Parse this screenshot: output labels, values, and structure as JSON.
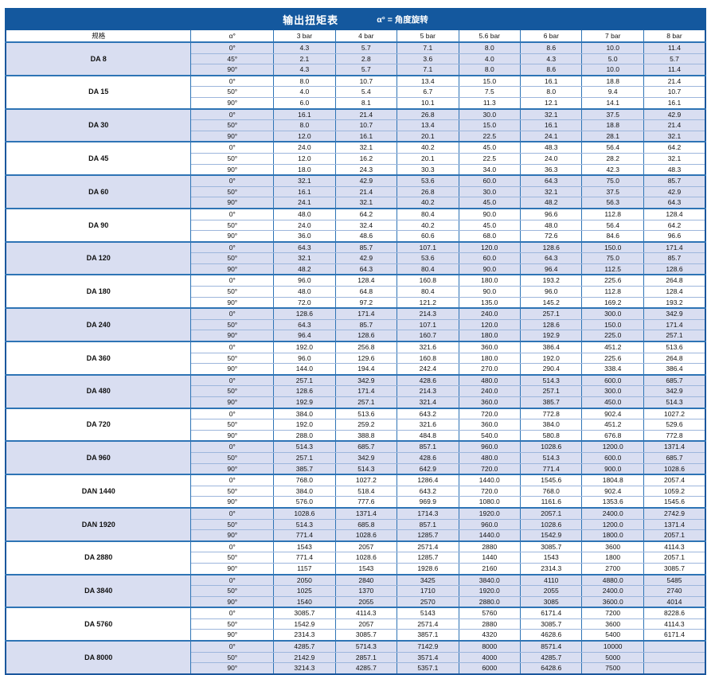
{
  "title": {
    "main": "输出扭矩表",
    "note": "α° = 角度旋转"
  },
  "columns": [
    "规格",
    "α°",
    "3 bar",
    "4 bar",
    "5 bar",
    "5.6 bar",
    "6 bar",
    "7 bar",
    "8 bar"
  ],
  "colors": {
    "title_bg": "#14589e",
    "title_text": "#ffffff",
    "border_strong": "#2e74b5",
    "border_light": "#9db6dc",
    "shaded_row_bg": "#d9def1",
    "plain_row_bg": "#ffffff"
  },
  "groups": [
    {
      "spec": "DA 8",
      "shaded": true,
      "rows": [
        {
          "angle": "0°",
          "values": [
            "4.3",
            "5.7",
            "7.1",
            "8.0",
            "8.6",
            "10.0",
            "11.4"
          ]
        },
        {
          "angle": "45°",
          "values": [
            "2.1",
            "2.8",
            "3.6",
            "4.0",
            "4.3",
            "5.0",
            "5.7"
          ]
        },
        {
          "angle": "90°",
          "values": [
            "4.3",
            "5.7",
            "7.1",
            "8.0",
            "8.6",
            "10.0",
            "11.4"
          ]
        }
      ]
    },
    {
      "spec": "DA 15",
      "shaded": false,
      "rows": [
        {
          "angle": "0°",
          "values": [
            "8.0",
            "10.7",
            "13.4",
            "15.0",
            "16.1",
            "18.8",
            "21.4"
          ]
        },
        {
          "angle": "50°",
          "values": [
            "4.0",
            "5.4",
            "6.7",
            "7.5",
            "8.0",
            "9.4",
            "10.7"
          ]
        },
        {
          "angle": "90°",
          "values": [
            "6.0",
            "8.1",
            "10.1",
            "11.3",
            "12.1",
            "14.1",
            "16.1"
          ]
        }
      ]
    },
    {
      "spec": "DA 30",
      "shaded": true,
      "rows": [
        {
          "angle": "0°",
          "values": [
            "16.1",
            "21.4",
            "26.8",
            "30.0",
            "32.1",
            "37.5",
            "42.9"
          ]
        },
        {
          "angle": "50°",
          "values": [
            "8.0",
            "10.7",
            "13.4",
            "15.0",
            "16.1",
            "18.8",
            "21.4"
          ]
        },
        {
          "angle": "90°",
          "values": [
            "12.0",
            "16.1",
            "20.1",
            "22.5",
            "24.1",
            "28.1",
            "32.1"
          ]
        }
      ]
    },
    {
      "spec": "DA 45",
      "shaded": false,
      "rows": [
        {
          "angle": "0°",
          "values": [
            "24.0",
            "32.1",
            "40.2",
            "45.0",
            "48.3",
            "56.4",
            "64.2"
          ]
        },
        {
          "angle": "50°",
          "values": [
            "12.0",
            "16.2",
            "20.1",
            "22.5",
            "24.0",
            "28.2",
            "32.1"
          ]
        },
        {
          "angle": "90°",
          "values": [
            "18.0",
            "24.3",
            "30.3",
            "34.0",
            "36.3",
            "42.3",
            "48.3"
          ]
        }
      ]
    },
    {
      "spec": "DA 60",
      "shaded": true,
      "rows": [
        {
          "angle": "0°",
          "values": [
            "32.1",
            "42.9",
            "53.6",
            "60.0",
            "64.3",
            "75.0",
            "85.7"
          ]
        },
        {
          "angle": "50°",
          "values": [
            "16.1",
            "21.4",
            "26.8",
            "30.0",
            "32.1",
            "37.5",
            "42.9"
          ]
        },
        {
          "angle": "90°",
          "values": [
            "24.1",
            "32.1",
            "40.2",
            "45.0",
            "48.2",
            "56.3",
            "64.3"
          ]
        }
      ]
    },
    {
      "spec": "DA 90",
      "shaded": false,
      "rows": [
        {
          "angle": "0°",
          "values": [
            "48.0",
            "64.2",
            "80.4",
            "90.0",
            "96.6",
            "112.8",
            "128.4"
          ]
        },
        {
          "angle": "50°",
          "values": [
            "24.0",
            "32.4",
            "40.2",
            "45.0",
            "48.0",
            "56.4",
            "64.2"
          ]
        },
        {
          "angle": "90°",
          "values": [
            "36.0",
            "48.6",
            "60.6",
            "68.0",
            "72.6",
            "84.6",
            "96.6"
          ]
        }
      ]
    },
    {
      "spec": "DA 120",
      "shaded": true,
      "rows": [
        {
          "angle": "0°",
          "values": [
            "64.3",
            "85.7",
            "107.1",
            "120.0",
            "128.6",
            "150.0",
            "171.4"
          ]
        },
        {
          "angle": "50°",
          "values": [
            "32.1",
            "42.9",
            "53.6",
            "60.0",
            "64.3",
            "75.0",
            "85.7"
          ]
        },
        {
          "angle": "90°",
          "values": [
            "48.2",
            "64.3",
            "80.4",
            "90.0",
            "96.4",
            "112.5",
            "128.6"
          ]
        }
      ]
    },
    {
      "spec": "DA 180",
      "shaded": false,
      "rows": [
        {
          "angle": "0°",
          "values": [
            "96.0",
            "128.4",
            "160.8",
            "180.0",
            "193.2",
            "225.6",
            "264.8"
          ]
        },
        {
          "angle": "50°",
          "values": [
            "48.0",
            "64.8",
            "80.4",
            "90.0",
            "96.0",
            "112.8",
            "128.4"
          ]
        },
        {
          "angle": "90°",
          "values": [
            "72.0",
            "97.2",
            "121.2",
            "135.0",
            "145.2",
            "169.2",
            "193.2"
          ]
        }
      ]
    },
    {
      "spec": "DA 240",
      "shaded": true,
      "rows": [
        {
          "angle": "0°",
          "values": [
            "128.6",
            "171.4",
            "214.3",
            "240.0",
            "257.1",
            "300.0",
            "342.9"
          ]
        },
        {
          "angle": "50°",
          "values": [
            "64.3",
            "85.7",
            "107.1",
            "120.0",
            "128.6",
            "150.0",
            "171.4"
          ]
        },
        {
          "angle": "90°",
          "values": [
            "96.4",
            "128.6",
            "160.7",
            "180.0",
            "192.9",
            "225.0",
            "257.1"
          ]
        }
      ]
    },
    {
      "spec": "DA 360",
      "shaded": false,
      "rows": [
        {
          "angle": "0°",
          "values": [
            "192.0",
            "256.8",
            "321.6",
            "360.0",
            "386.4",
            "451.2",
            "513.6"
          ]
        },
        {
          "angle": "50°",
          "values": [
            "96.0",
            "129.6",
            "160.8",
            "180.0",
            "192.0",
            "225.6",
            "264.8"
          ]
        },
        {
          "angle": "90°",
          "values": [
            "144.0",
            "194.4",
            "242.4",
            "270.0",
            "290.4",
            "338.4",
            "386.4"
          ]
        }
      ]
    },
    {
      "spec": "DA 480",
      "shaded": true,
      "rows": [
        {
          "angle": "0°",
          "values": [
            "257.1",
            "342.9",
            "428.6",
            "480.0",
            "514.3",
            "600.0",
            "685.7"
          ]
        },
        {
          "angle": "50°",
          "values": [
            "128.6",
            "171.4",
            "214.3",
            "240.0",
            "257.1",
            "300.0",
            "342.9"
          ]
        },
        {
          "angle": "90°",
          "values": [
            "192.9",
            "257.1",
            "321.4",
            "360.0",
            "385.7",
            "450.0",
            "514.3"
          ]
        }
      ]
    },
    {
      "spec": "DA 720",
      "shaded": false,
      "rows": [
        {
          "angle": "0°",
          "values": [
            "384.0",
            "513.6",
            "643.2",
            "720.0",
            "772.8",
            "902.4",
            "1027.2"
          ]
        },
        {
          "angle": "50°",
          "values": [
            "192.0",
            "259.2",
            "321.6",
            "360.0",
            "384.0",
            "451.2",
            "529.6"
          ]
        },
        {
          "angle": "90°",
          "values": [
            "288.0",
            "388.8",
            "484.8",
            "540.0",
            "580.8",
            "676.8",
            "772.8"
          ]
        }
      ]
    },
    {
      "spec": "DA 960",
      "shaded": true,
      "rows": [
        {
          "angle": "0°",
          "values": [
            "514.3",
            "685.7",
            "857.1",
            "960.0",
            "1028.6",
            "1200.0",
            "1371.4"
          ]
        },
        {
          "angle": "50°",
          "values": [
            "257.1",
            "342.9",
            "428.6",
            "480.0",
            "514.3",
            "600.0",
            "685.7"
          ]
        },
        {
          "angle": "90°",
          "values": [
            "385.7",
            "514.3",
            "642.9",
            "720.0",
            "771.4",
            "900.0",
            "1028.6"
          ]
        }
      ]
    },
    {
      "spec": "DAN 1440",
      "shaded": false,
      "rows": [
        {
          "angle": "0°",
          "values": [
            "768.0",
            "1027.2",
            "1286.4",
            "1440.0",
            "1545.6",
            "1804.8",
            "2057.4"
          ]
        },
        {
          "angle": "50°",
          "values": [
            "384.0",
            "518.4",
            "643.2",
            "720.0",
            "768.0",
            "902.4",
            "1059.2"
          ]
        },
        {
          "angle": "90°",
          "values": [
            "576.0",
            "777.6",
            "969.9",
            "1080.0",
            "1161.6",
            "1353.6",
            "1545.6"
          ]
        }
      ]
    },
    {
      "spec": "DAN 1920",
      "shaded": true,
      "rows": [
        {
          "angle": "0°",
          "values": [
            "1028.6",
            "1371.4",
            "1714.3",
            "1920.0",
            "2057.1",
            "2400.0",
            "2742.9"
          ]
        },
        {
          "angle": "50°",
          "values": [
            "514.3",
            "685.8",
            "857.1",
            "960.0",
            "1028.6",
            "1200.0",
            "1371.4"
          ]
        },
        {
          "angle": "90°",
          "values": [
            "771.4",
            "1028.6",
            "1285.7",
            "1440.0",
            "1542.9",
            "1800.0",
            "2057.1"
          ]
        }
      ]
    },
    {
      "spec": "DA 2880",
      "shaded": false,
      "rows": [
        {
          "angle": "0°",
          "values": [
            "1543",
            "2057",
            "2571.4",
            "2880",
            "3085.7",
            "3600",
            "4114.3"
          ]
        },
        {
          "angle": "50°",
          "values": [
            "771.4",
            "1028.6",
            "1285.7",
            "1440",
            "1543",
            "1800",
            "2057.1"
          ]
        },
        {
          "angle": "90°",
          "values": [
            "1157",
            "1543",
            "1928.6",
            "2160",
            "2314.3",
            "2700",
            "3085.7"
          ]
        }
      ]
    },
    {
      "spec": "DA 3840",
      "shaded": true,
      "rows": [
        {
          "angle": "0°",
          "values": [
            "2050",
            "2840",
            "3425",
            "3840.0",
            "4110",
            "4880.0",
            "5485"
          ]
        },
        {
          "angle": "50°",
          "values": [
            "1025",
            "1370",
            "1710",
            "1920.0",
            "2055",
            "2400.0",
            "2740"
          ]
        },
        {
          "angle": "90°",
          "values": [
            "1540",
            "2055",
            "2570",
            "2880.0",
            "3085",
            "3600.0",
            "4014"
          ]
        }
      ]
    },
    {
      "spec": "DA 5760",
      "shaded": false,
      "rows": [
        {
          "angle": "0°",
          "values": [
            "3085.7",
            "4114.3",
            "5143",
            "5760",
            "6171.4",
            "7200",
            "8228.6"
          ]
        },
        {
          "angle": "50°",
          "values": [
            "1542.9",
            "2057",
            "2571.4",
            "2880",
            "3085.7",
            "3600",
            "4114.3"
          ]
        },
        {
          "angle": "90°",
          "values": [
            "2314.3",
            "3085.7",
            "3857.1",
            "4320",
            "4628.6",
            "5400",
            "6171.4"
          ]
        }
      ]
    },
    {
      "spec": "DA 8000",
      "shaded": true,
      "rows": [
        {
          "angle": "0°",
          "values": [
            "4285.7",
            "5714.3",
            "7142.9",
            "8000",
            "8571.4",
            "10000",
            ""
          ]
        },
        {
          "angle": "50°",
          "values": [
            "2142.9",
            "2857.1",
            "3571.4",
            "4000",
            "4285.7",
            "5000",
            ""
          ]
        },
        {
          "angle": "90°",
          "values": [
            "3214.3",
            "4285.7",
            "5357.1",
            "6000",
            "6428.6",
            "7500",
            ""
          ]
        }
      ]
    }
  ]
}
